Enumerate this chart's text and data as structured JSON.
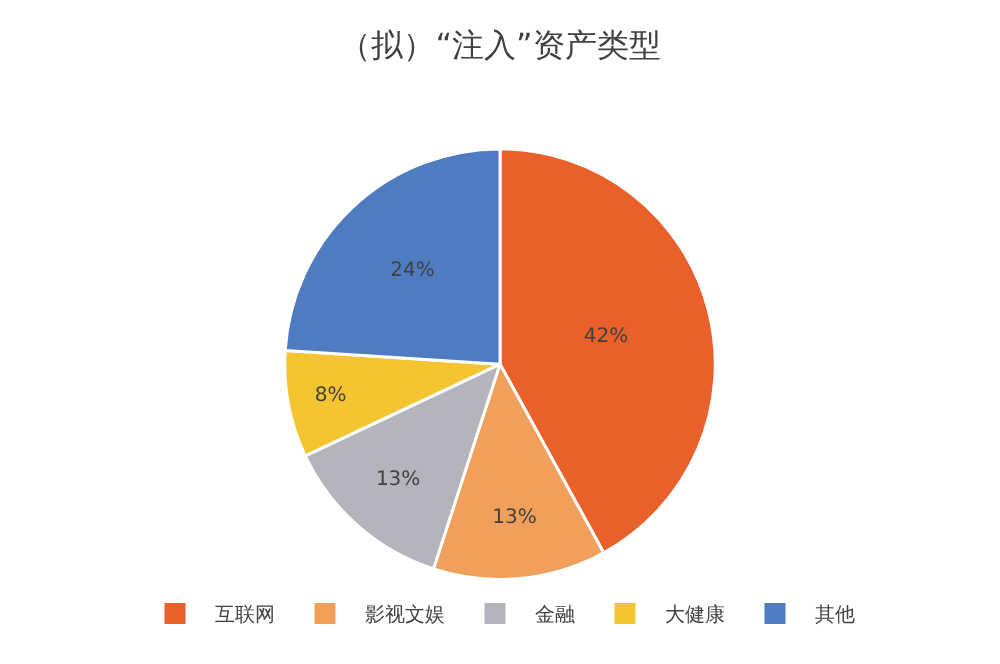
{
  "chart_data": {
    "type": "pie",
    "title": "（拟）“注入”资产类型",
    "categories": [
      "互联网",
      "影视文娱",
      "金融",
      "大健康",
      "其他"
    ],
    "values": [
      42,
      13,
      13,
      8,
      24
    ],
    "value_labels": [
      "42%",
      "13%",
      "13%",
      "8%",
      "24%"
    ],
    "colors": [
      "#e9602b",
      "#f0a05a",
      "#b4b4bc",
      "#f5c431",
      "#4f7cc0"
    ],
    "legend": "bottom"
  }
}
